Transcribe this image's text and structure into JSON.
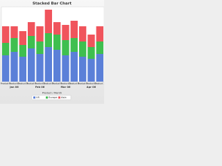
{
  "chart_data": {
    "type": "stacked-bar",
    "title": "Stacked Bar Chart",
    "x_label": "Product / Month",
    "categories": [
      "Product 1",
      "Product 2",
      "Product 3",
      "Product 1",
      "Product 2",
      "Product 3",
      "Product 1",
      "Product 2",
      "Product 3",
      "Product 1",
      "Product 2",
      "Product 3"
    ],
    "groups": [
      "Jan 06",
      "Feb 06",
      "Mar 06",
      "Apr 06"
    ],
    "series": [
      {
        "name": "US",
        "color": "#5b80d8",
        "values": [
          38,
          43,
          36,
          48,
          40,
          50,
          46,
          38,
          43,
          36,
          33,
          40
        ]
      },
      {
        "name": "Europe",
        "color": "#3fbf4f",
        "values": [
          18,
          20,
          17,
          18,
          18,
          20,
          22,
          22,
          20,
          22,
          17,
          18
        ]
      },
      {
        "name": "Asia",
        "color": "#f0545c",
        "values": [
          24,
          17,
          20,
          20,
          22,
          34,
          18,
          22,
          25,
          22,
          18,
          22
        ]
      }
    ],
    "ylim": [
      0,
      108
    ]
  }
}
